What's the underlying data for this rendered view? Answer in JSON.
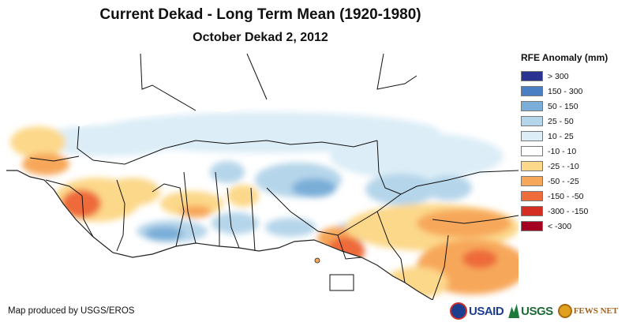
{
  "title": "Current Dekad - Long Term Mean (1920-1980)",
  "subtitle": "October Dekad 2, 2012",
  "legend": {
    "title": "RFE Anomaly (mm)",
    "items": [
      {
        "label": "> 300",
        "color": "#2b3391"
      },
      {
        "label": "150 - 300",
        "color": "#4a7fc4"
      },
      {
        "label": "50 - 150",
        "color": "#7aaed8"
      },
      {
        "label": "25 - 50",
        "color": "#b5d5ea"
      },
      {
        "label": "10 - 25",
        "color": "#dcedf7"
      },
      {
        "label": "-10 - 10",
        "color": "#ffffff"
      },
      {
        "label": "-25 - -10",
        "color": "#fcd88a"
      },
      {
        "label": "-50 - -25",
        "color": "#f7a75a"
      },
      {
        "label": "-150 - -50",
        "color": "#ee6b3a"
      },
      {
        "label": "-300 - -150",
        "color": "#d42d22"
      },
      {
        "label": "< -300",
        "color": "#a50021"
      }
    ]
  },
  "credit": "Map produced by USGS/EROS",
  "logos": {
    "usaid": "USAID",
    "usgs": "USGS",
    "fews": "FEWS NET"
  }
}
